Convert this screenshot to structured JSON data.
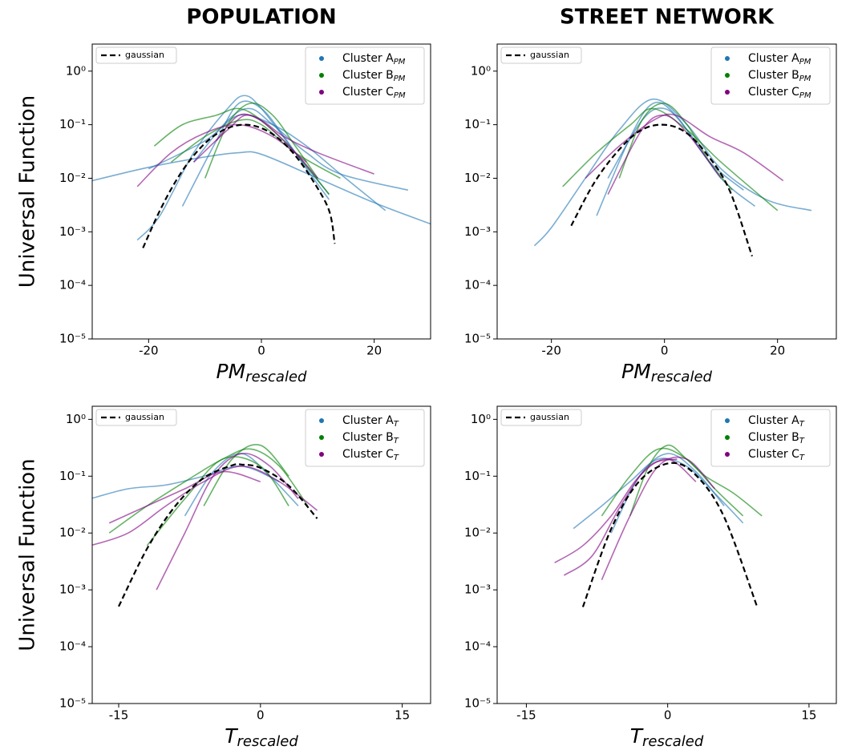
{
  "chart_data": [
    {
      "type": "line",
      "title": "POPULATION",
      "ylabel": "Universal Function",
      "xlabel_main": "PM",
      "xlabel_sub": "rescaled",
      "log_y": true,
      "xlim": [
        -30,
        30
      ],
      "ylim": [
        1e-05,
        3.2
      ],
      "xticks": [
        -20,
        0,
        20
      ],
      "yticks": [
        {
          "value": 1,
          "label": "10⁰"
        },
        {
          "value": 0.1,
          "label": "10⁻¹"
        },
        {
          "value": 0.01,
          "label": "10⁻²"
        },
        {
          "value": 0.001,
          "label": "10⁻³"
        },
        {
          "value": 0.0001,
          "label": "10⁻⁴"
        },
        {
          "value": 1e-05,
          "label": "10⁻⁵"
        }
      ],
      "legend": "upper right",
      "gaussian_legend": "upper left",
      "gaussian": {
        "name": "gaussian",
        "color": "#000000",
        "x": [
          -21,
          -18,
          -15,
          -12,
          -9,
          -6,
          -3,
          0,
          3,
          6,
          9,
          12,
          13
        ],
        "values": [
          0.0005,
          0.0025,
          0.0095,
          0.0266,
          0.0556,
          0.0863,
          0.1,
          0.0863,
          0.0556,
          0.0266,
          0.0095,
          0.0025,
          0.0006
        ]
      },
      "series": [
        {
          "name": "Cluster A",
          "name_sub": "PM",
          "color": "#1f77b4",
          "curves": [
            {
              "x": [
                -30,
                -20,
                -10,
                -4,
                0,
                10,
                20,
                30
              ],
              "values": [
                0.009,
                0.016,
                0.025,
                0.03,
                0.028,
                0.01,
                0.0035,
                0.0014
              ]
            },
            {
              "x": [
                -22,
                -18,
                -12,
                -6,
                -3,
                0,
                6,
                12
              ],
              "values": [
                0.0007,
                0.002,
                0.03,
                0.2,
                0.35,
                0.2,
                0.03,
                0.005
              ]
            },
            {
              "x": [
                -14,
                -8,
                -4,
                0,
                4,
                8,
                12
              ],
              "values": [
                0.003,
                0.05,
                0.25,
                0.2,
                0.06,
                0.015,
                0.004
              ]
            },
            {
              "x": [
                -12,
                -6,
                -2,
                2,
                8,
                14,
                26
              ],
              "values": [
                0.02,
                0.12,
                0.2,
                0.1,
                0.03,
                0.012,
                0.006
              ]
            },
            {
              "x": [
                -20,
                -10,
                -4,
                2,
                8,
                14,
                22
              ],
              "values": [
                0.015,
                0.05,
                0.15,
                0.1,
                0.04,
                0.012,
                0.0025
              ]
            }
          ]
        },
        {
          "name": "Cluster B",
          "name_sub": "PM",
          "color": "#008000",
          "curves": [
            {
              "x": [
                -19,
                -14,
                -8,
                -4,
                0,
                6,
                12
              ],
              "values": [
                0.04,
                0.1,
                0.15,
                0.2,
                0.12,
                0.03,
                0.005
              ]
            },
            {
              "x": [
                -10,
                -6,
                -2,
                2,
                6,
                10
              ],
              "values": [
                0.01,
                0.1,
                0.25,
                0.15,
                0.04,
                0.01
              ]
            },
            {
              "x": [
                -16,
                -10,
                -4,
                0,
                6,
                14
              ],
              "values": [
                0.02,
                0.06,
                0.12,
                0.1,
                0.03,
                0.01
              ]
            }
          ]
        },
        {
          "name": "Cluster C",
          "name_sub": "PM",
          "color": "#800080",
          "curves": [
            {
              "x": [
                -22,
                -16,
                -10,
                -4,
                2,
                8
              ],
              "values": [
                0.007,
                0.03,
                0.07,
                0.1,
                0.06,
                0.02
              ]
            },
            {
              "x": [
                -8,
                -4,
                0,
                4,
                10,
                20
              ],
              "values": [
                0.05,
                0.15,
                0.12,
                0.06,
                0.03,
                0.012
              ]
            },
            {
              "x": [
                -12,
                -6,
                -2,
                4,
                10
              ],
              "values": [
                0.02,
                0.08,
                0.15,
                0.05,
                0.01
              ]
            }
          ]
        }
      ]
    },
    {
      "type": "line",
      "title": "STREET NETWORK",
      "xlabel_main": "PM",
      "xlabel_sub": "rescaled",
      "log_y": true,
      "xlim": [
        -29.6,
        30.4
      ],
      "ylim": [
        1e-05,
        3.2
      ],
      "xticks": [
        -20,
        0,
        20
      ],
      "yticks": [
        {
          "value": 1,
          "label": "10⁰"
        },
        {
          "value": 0.1,
          "label": "10⁻¹"
        },
        {
          "value": 0.01,
          "label": "10⁻²"
        },
        {
          "value": 0.001,
          "label": "10⁻³"
        },
        {
          "value": 0.0001,
          "label": "10⁻⁴"
        },
        {
          "value": 1e-05,
          "label": "10⁻⁵"
        }
      ],
      "legend": "upper right",
      "gaussian_legend": "upper left",
      "gaussian": {
        "name": "gaussian",
        "color": "#000000",
        "x": [
          -16.5,
          -12.5,
          -8.5,
          -4.5,
          -0.5,
          3.5,
          7.5,
          11.5,
          15.5
        ],
        "values": [
          0.0013,
          0.008,
          0.03,
          0.075,
          0.1,
          0.075,
          0.028,
          0.006,
          0.00035
        ]
      },
      "series": [
        {
          "name": "Cluster A",
          "name_sub": "PM",
          "color": "#1f77b4",
          "curves": [
            {
              "x": [
                -23,
                -20,
                -14,
                -8,
                -2,
                4,
                10,
                18,
                26
              ],
              "values": [
                0.00055,
                0.0012,
                0.01,
                0.08,
                0.3,
                0.1,
                0.015,
                0.004,
                0.0025
              ]
            },
            {
              "x": [
                -12,
                -6,
                -2,
                2,
                8,
                14
              ],
              "values": [
                0.002,
                0.06,
                0.25,
                0.15,
                0.02,
                0.006
              ]
            },
            {
              "x": [
                -10,
                -4,
                0,
                4,
                10,
                16
              ],
              "values": [
                0.01,
                0.12,
                0.2,
                0.08,
                0.01,
                0.003
              ]
            }
          ]
        },
        {
          "name": "Cluster B",
          "name_sub": "PM",
          "color": "#008000",
          "curves": [
            {
              "x": [
                -18,
                -12,
                -6,
                -2,
                4,
                10,
                20
              ],
              "values": [
                0.007,
                0.03,
                0.1,
                0.2,
                0.08,
                0.02,
                0.0025
              ]
            },
            {
              "x": [
                -8,
                -4,
                0,
                4,
                8,
                12
              ],
              "values": [
                0.01,
                0.12,
                0.25,
                0.1,
                0.02,
                0.006
              ]
            }
          ]
        },
        {
          "name": "Cluster C",
          "name_sub": "PM",
          "color": "#800080",
          "curves": [
            {
              "x": [
                -14,
                -8,
                -2,
                2,
                8,
                14,
                21
              ],
              "values": [
                0.01,
                0.04,
                0.12,
                0.15,
                0.06,
                0.03,
                0.009
              ]
            },
            {
              "x": [
                -10,
                -4,
                0,
                4,
                10
              ],
              "values": [
                0.005,
                0.08,
                0.15,
                0.07,
                0.01
              ]
            }
          ]
        }
      ]
    },
    {
      "type": "line",
      "ylabel": "Universal Function",
      "xlabel_main": "T",
      "xlabel_sub": "rescaled",
      "log_y": true,
      "xlim": [
        -17.8,
        18
      ],
      "ylim": [
        1e-05,
        1.7
      ],
      "xticks": [
        -15,
        0,
        15
      ],
      "yticks": [
        {
          "value": 1,
          "label": "10⁰"
        },
        {
          "value": 0.1,
          "label": "10⁻¹"
        },
        {
          "value": 0.01,
          "label": "10⁻²"
        },
        {
          "value": 0.001,
          "label": "10⁻³"
        },
        {
          "value": 0.0001,
          "label": "10⁻⁴"
        },
        {
          "value": 1e-05,
          "label": "10⁻⁵"
        }
      ],
      "legend": "upper right",
      "gaussian_legend": "upper left",
      "gaussian": {
        "name": "gaussian",
        "color": "#000000",
        "x": [
          -15,
          -12,
          -9,
          -6,
          -3,
          -2,
          0,
          3,
          6
        ],
        "values": [
          0.00051,
          0.0053,
          0.03,
          0.093,
          0.155,
          0.16,
          0.14,
          0.068,
          0.018
        ]
      },
      "series": [
        {
          "name": "Cluster A",
          "name_sub": "T",
          "color": "#1f77b4",
          "curves": [
            {
              "x": [
                -18,
                -14,
                -10,
                -6,
                -2,
                2
              ],
              "values": [
                0.04,
                0.06,
                0.07,
                0.1,
                0.15,
                0.08
              ]
            },
            {
              "x": [
                -8,
                -5,
                -2,
                1,
                4
              ],
              "values": [
                0.02,
                0.12,
                0.25,
                0.1,
                0.03
              ]
            }
          ]
        },
        {
          "name": "Cluster B",
          "name_sub": "T",
          "color": "#008000",
          "curves": [
            {
              "x": [
                -16,
                -12,
                -8,
                -4,
                -1,
                2,
                5
              ],
              "values": [
                0.01,
                0.03,
                0.08,
                0.2,
                0.3,
                0.15,
                0.03
              ]
            },
            {
              "x": [
                -12,
                -8,
                -4,
                0,
                3
              ],
              "values": [
                0.006,
                0.04,
                0.2,
                0.15,
                0.03
              ]
            },
            {
              "x": [
                -6,
                -3,
                0,
                3
              ],
              "values": [
                0.03,
                0.2,
                0.35,
                0.1
              ]
            }
          ]
        },
        {
          "name": "Cluster C",
          "name_sub": "T",
          "color": "#800080",
          "curves": [
            {
              "x": [
                -18,
                -14,
                -10,
                -6,
                -2,
                2,
                6
              ],
              "values": [
                0.006,
                0.01,
                0.03,
                0.08,
                0.15,
                0.08,
                0.025
              ]
            },
            {
              "x": [
                -11,
                -8,
                -5,
                -2,
                1,
                4
              ],
              "values": [
                0.001,
                0.01,
                0.1,
                0.25,
                0.15,
                0.04
              ]
            },
            {
              "x": [
                -16,
                -12,
                -8,
                -4,
                0
              ],
              "values": [
                0.015,
                0.03,
                0.06,
                0.12,
                0.08
              ]
            }
          ]
        }
      ]
    },
    {
      "type": "line",
      "xlabel_main": "T",
      "xlabel_sub": "rescaled",
      "log_y": true,
      "xlim": [
        -18.1,
        17.9
      ],
      "ylim": [
        1e-05,
        1.7
      ],
      "xticks": [
        -15,
        0,
        15
      ],
      "yticks": [
        {
          "value": 1,
          "label": "10⁰"
        },
        {
          "value": 0.1,
          "label": "10⁻¹"
        },
        {
          "value": 0.01,
          "label": "10⁻²"
        },
        {
          "value": 0.001,
          "label": "10⁻³"
        },
        {
          "value": 0.0001,
          "label": "10⁻⁴"
        },
        {
          "value": 1e-05,
          "label": "10⁻⁵"
        }
      ],
      "legend": "upper right",
      "gaussian_legend": "upper left",
      "gaussian": {
        "name": "gaussian",
        "color": "#000000",
        "x": [
          -9,
          -6,
          -3,
          0.3,
          3,
          6,
          9.5
        ],
        "values": [
          0.0005,
          0.0118,
          0.082,
          0.17,
          0.104,
          0.019,
          0.0005
        ]
      },
      "series": [
        {
          "name": "Cluster A",
          "name_sub": "T",
          "color": "#1f77b4",
          "curves": [
            {
              "x": [
                -10,
                -7,
                -4,
                -1,
                2,
                5,
                8
              ],
              "values": [
                0.012,
                0.03,
                0.08,
                0.2,
                0.15,
                0.05,
                0.015
              ]
            },
            {
              "x": [
                -6,
                -3,
                0,
                3,
                6
              ],
              "values": [
                0.01,
                0.1,
                0.25,
                0.12,
                0.03
              ]
            }
          ]
        },
        {
          "name": "Cluster B",
          "name_sub": "T",
          "color": "#008000",
          "curves": [
            {
              "x": [
                -4,
                -2,
                0,
                2,
                4,
                7,
                10
              ],
              "values": [
                0.02,
                0.15,
                0.35,
                0.2,
                0.1,
                0.05,
                0.02
              ]
            },
            {
              "x": [
                -7,
                -4,
                -1,
                2,
                5,
                8
              ],
              "values": [
                0.02,
                0.1,
                0.3,
                0.2,
                0.06,
                0.02
              ]
            }
          ]
        },
        {
          "name": "Cluster C",
          "name_sub": "T",
          "color": "#800080",
          "curves": [
            {
              "x": [
                -12,
                -9,
                -6,
                -3,
                0,
                3
              ],
              "values": [
                0.003,
                0.006,
                0.02,
                0.1,
                0.2,
                0.08
              ]
            },
            {
              "x": [
                -11,
                -8,
                -5,
                -2,
                1
              ],
              "values": [
                0.0018,
                0.004,
                0.03,
                0.15,
                0.2
              ]
            },
            {
              "x": [
                -7,
                -4,
                -1,
                2,
                5
              ],
              "values": [
                0.0015,
                0.02,
                0.15,
                0.2,
                0.06
              ]
            }
          ]
        }
      ]
    }
  ]
}
